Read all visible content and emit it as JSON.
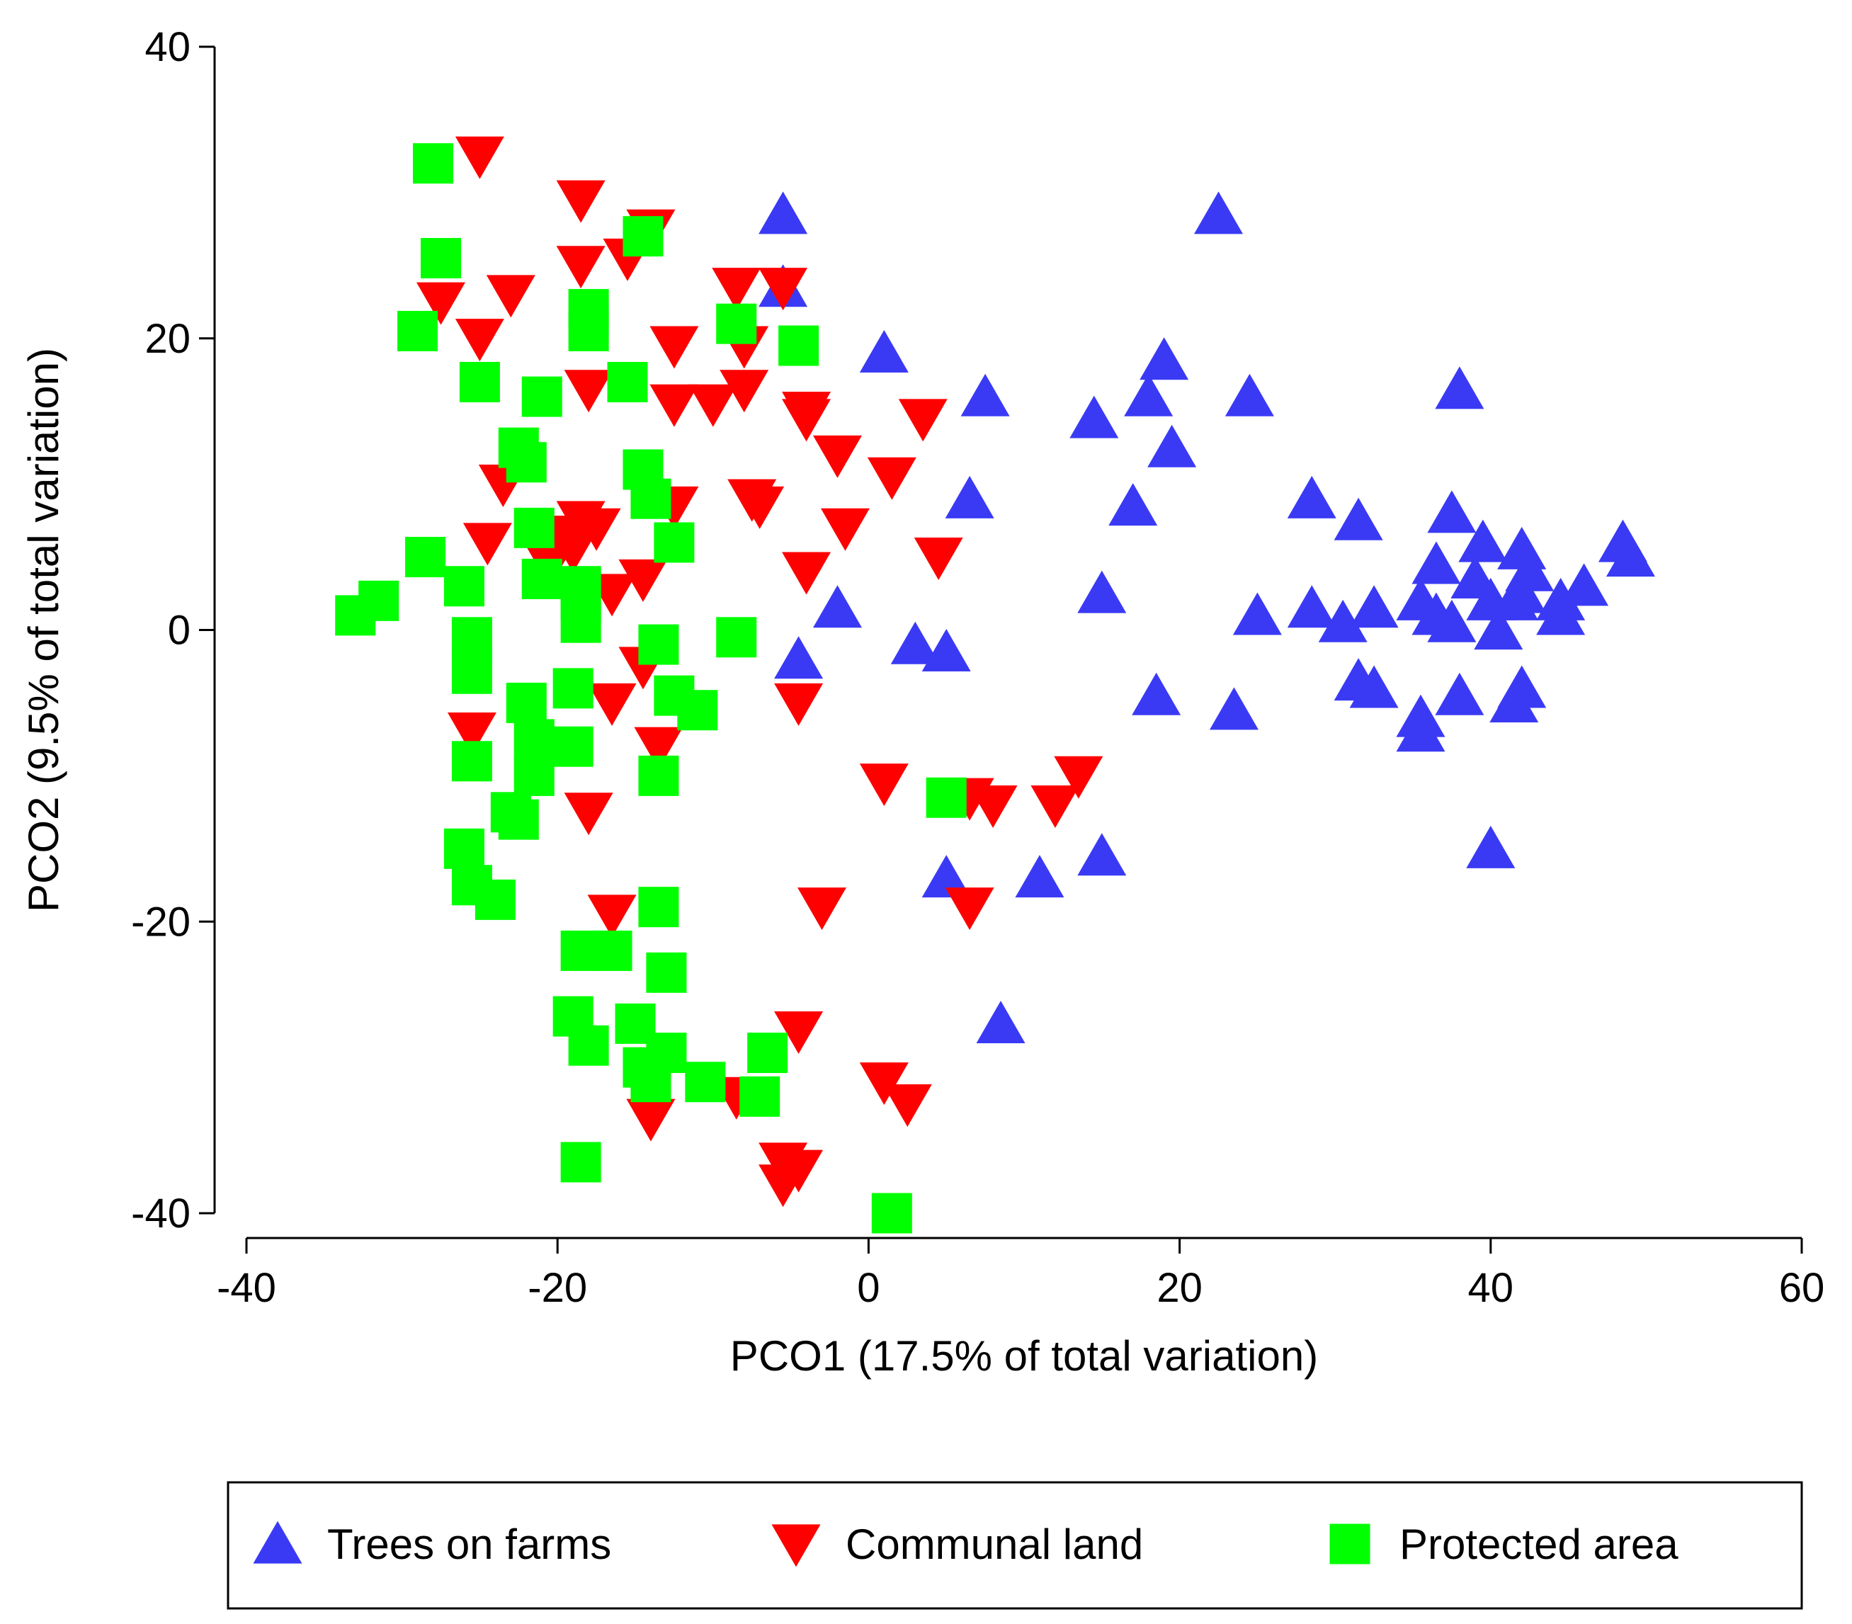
{
  "chart_data": {
    "type": "scatter",
    "title": "",
    "xlabel": "PCO1 (17.5% of total variation)",
    "ylabel": "PCO2 (9.5% of total variation)",
    "xlim": [
      -40,
      60
    ],
    "ylim": [
      -40,
      40
    ],
    "xticks": [
      "-40",
      "-20",
      "0",
      "20",
      "40",
      "60"
    ],
    "yticks": [
      "40",
      "20",
      "0",
      "-20",
      "-40"
    ],
    "grid": false,
    "legend_position": "bottom",
    "series": [
      {
        "name": "Trees on farms",
        "marker": "triangle-up",
        "color": "#3a3af5",
        "points": [
          [
            -5.5,
            28.5
          ],
          [
            -5.5,
            23.5
          ],
          [
            1,
            19
          ],
          [
            7.5,
            16
          ],
          [
            14.5,
            14.5
          ],
          [
            18,
            16
          ],
          [
            19,
            18.5
          ],
          [
            19.5,
            12.5
          ],
          [
            24.5,
            16
          ],
          [
            22.5,
            28.5
          ],
          [
            38,
            16.5
          ],
          [
            6.5,
            9
          ],
          [
            17,
            8.5
          ],
          [
            28.5,
            9
          ],
          [
            31.5,
            7.5
          ],
          [
            37.5,
            8
          ],
          [
            39.5,
            6
          ],
          [
            42,
            5.5
          ],
          [
            48.5,
            6
          ],
          [
            49,
            5
          ],
          [
            -2,
            1.5
          ],
          [
            15,
            2.5
          ],
          [
            25,
            1
          ],
          [
            28.5,
            1.5
          ],
          [
            30.5,
            0.5
          ],
          [
            32.5,
            1.5
          ],
          [
            35.5,
            2
          ],
          [
            36.5,
            4.5
          ],
          [
            36.5,
            1
          ],
          [
            37.5,
            0.5
          ],
          [
            39,
            3.5
          ],
          [
            40,
            2
          ],
          [
            40.5,
            0
          ],
          [
            41.5,
            2
          ],
          [
            42,
            2.5
          ],
          [
            42.5,
            4
          ],
          [
            44.5,
            2
          ],
          [
            44.5,
            1
          ],
          [
            46,
            3
          ],
          [
            3,
            -1
          ],
          [
            5,
            -1.5
          ],
          [
            -4.5,
            -2
          ],
          [
            18.5,
            -4.5
          ],
          [
            23.5,
            -5.5
          ],
          [
            31.5,
            -3.5
          ],
          [
            32.5,
            -4
          ],
          [
            35.5,
            -6
          ],
          [
            35.5,
            -7
          ],
          [
            38,
            -4.5
          ],
          [
            41.5,
            -5
          ],
          [
            42,
            -4
          ],
          [
            40,
            -15
          ],
          [
            15,
            -15.5
          ],
          [
            5,
            -17
          ],
          [
            11,
            -17
          ],
          [
            8.5,
            -27
          ]
        ]
      },
      {
        "name": "Communal land",
        "marker": "triangle-down",
        "color": "#ff0000",
        "points": [
          [
            -25,
            32.5
          ],
          [
            -18.5,
            29.5
          ],
          [
            -18.5,
            25
          ],
          [
            -15.5,
            25.5
          ],
          [
            -14,
            27.5
          ],
          [
            -27.5,
            22.5
          ],
          [
            -23,
            23
          ],
          [
            -25,
            20
          ],
          [
            -8.5,
            23.5
          ],
          [
            -5.5,
            23.5
          ],
          [
            -12.5,
            19.5
          ],
          [
            -8,
            19.5
          ],
          [
            -18,
            16.5
          ],
          [
            -12.5,
            15.5
          ],
          [
            -10,
            15.5
          ],
          [
            -8,
            16.5
          ],
          [
            -4,
            15
          ],
          [
            3.5,
            14.5
          ],
          [
            -4,
            14.5
          ],
          [
            -2,
            12
          ],
          [
            -23.5,
            10
          ],
          [
            1.5,
            10.5
          ],
          [
            -7.5,
            9
          ],
          [
            -7,
            8.5
          ],
          [
            -12.5,
            8.5
          ],
          [
            -20,
            6.5
          ],
          [
            -18.5,
            7.5
          ],
          [
            -17.5,
            7
          ],
          [
            -24.5,
            6
          ],
          [
            -19,
            5.5
          ],
          [
            -20.5,
            4.5
          ],
          [
            -1.5,
            7
          ],
          [
            4.5,
            5
          ],
          [
            -4,
            4
          ],
          [
            -14.5,
            3.5
          ],
          [
            -16.5,
            2.5
          ],
          [
            -14.5,
            -2.5
          ],
          [
            -16.5,
            -5
          ],
          [
            -4.5,
            -5
          ],
          [
            -25.5,
            -7
          ],
          [
            -13.5,
            -8
          ],
          [
            1,
            -10.5
          ],
          [
            6.5,
            -11.5
          ],
          [
            8,
            -12
          ],
          [
            12,
            -12
          ],
          [
            13.5,
            -10
          ],
          [
            -18,
            -12.5
          ],
          [
            -16.5,
            -19.5
          ],
          [
            -3,
            -19
          ],
          [
            6.5,
            -19
          ],
          [
            -4.5,
            -27.5
          ],
          [
            -8.5,
            -32
          ],
          [
            1,
            -31
          ],
          [
            2.5,
            -32.5
          ],
          [
            -14,
            -33.5
          ],
          [
            -5.5,
            -36.5
          ],
          [
            -4.5,
            -37
          ],
          [
            -5.5,
            -38
          ]
        ]
      },
      {
        "name": "Protected area",
        "marker": "square",
        "color": "#00ff00",
        "points": [
          [
            -28,
            32
          ],
          [
            -14.5,
            27
          ],
          [
            -27.5,
            25.5
          ],
          [
            -18,
            22
          ],
          [
            -18,
            20.5
          ],
          [
            -29,
            20.5
          ],
          [
            -8.5,
            21
          ],
          [
            -4.5,
            19.5
          ],
          [
            -25,
            17
          ],
          [
            -15.5,
            17
          ],
          [
            -21,
            16
          ],
          [
            -22.5,
            12.5
          ],
          [
            -22,
            11.5
          ],
          [
            -14.5,
            11
          ],
          [
            -14,
            9
          ],
          [
            -12.5,
            6
          ],
          [
            -21.5,
            7
          ],
          [
            -28.5,
            5
          ],
          [
            -26,
            3
          ],
          [
            -21,
            3.5
          ],
          [
            -18.5,
            3
          ],
          [
            -18.5,
            2
          ],
          [
            -18.5,
            0.5
          ],
          [
            -31.5,
            2
          ],
          [
            -33,
            1
          ],
          [
            -25.5,
            -0.5
          ],
          [
            -13.5,
            -1
          ],
          [
            -8.5,
            -0.5
          ],
          [
            -25.5,
            -3
          ],
          [
            -19,
            -4
          ],
          [
            -12.5,
            -4.5
          ],
          [
            -11,
            -5.5
          ],
          [
            -22,
            -5
          ],
          [
            -21.5,
            -7.5
          ],
          [
            -19,
            -8
          ],
          [
            -25.5,
            -9
          ],
          [
            -21.5,
            -10
          ],
          [
            -13.5,
            -10
          ],
          [
            -23,
            -12.5
          ],
          [
            -22.5,
            -13
          ],
          [
            5,
            -11.5
          ],
          [
            -26,
            -15
          ],
          [
            -25.5,
            -17.5
          ],
          [
            -24,
            -18.5
          ],
          [
            -13.5,
            -19
          ],
          [
            -18.5,
            -22
          ],
          [
            -16.5,
            -22
          ],
          [
            -13,
            -23.5
          ],
          [
            -19,
            -26.5
          ],
          [
            -15,
            -27
          ],
          [
            -18,
            -28.5
          ],
          [
            -13,
            -29
          ],
          [
            -14.5,
            -30
          ],
          [
            -14,
            -31
          ],
          [
            -10.5,
            -31
          ],
          [
            -6.5,
            -29
          ],
          [
            -7,
            -32
          ],
          [
            -18.5,
            -36.5
          ],
          [
            1.5,
            -40
          ]
        ]
      }
    ]
  }
}
